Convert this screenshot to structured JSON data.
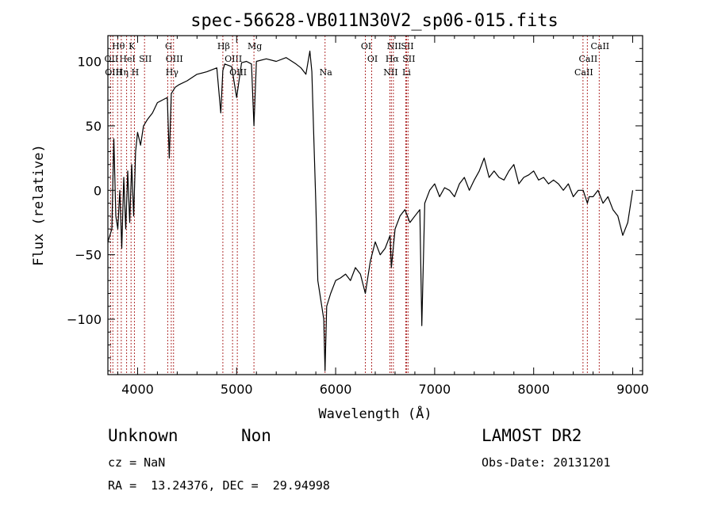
{
  "chart_data": {
    "type": "line",
    "title": "spec-56628-VB011N30V2_sp06-015.fits",
    "xlabel": "Wavelength (Å)",
    "ylabel": "Flux (relative)",
    "xlim": [
      3700,
      9100
    ],
    "ylim": [
      -143,
      120
    ],
    "xticks": [
      4000,
      5000,
      6000,
      7000,
      8000,
      9000
    ],
    "yticks": [
      -100,
      -50,
      0,
      50,
      100
    ],
    "grid": false,
    "line_color": "#000000",
    "marker_color": "#b03030",
    "series": [
      {
        "x": [
          3700,
          3740,
          3760,
          3780,
          3800,
          3820,
          3840,
          3860,
          3880,
          3900,
          3920,
          3940,
          3960,
          3980,
          4000,
          4030,
          4060,
          4100,
          4150,
          4200,
          4250,
          4300,
          4320,
          4340,
          4380,
          4420,
          4500,
          4600,
          4700,
          4800,
          4840,
          4861,
          4880,
          4950,
          5000,
          5050,
          5100,
          5150,
          5175,
          5200,
          5300,
          5400,
          5500,
          5600,
          5650,
          5700,
          5740,
          5760,
          5780,
          5800,
          5820,
          5840,
          5860,
          5880,
          5893,
          5910,
          5950,
          6000,
          6050,
          6100,
          6150,
          6200,
          6250,
          6300,
          6350,
          6400,
          6450,
          6500,
          6550,
          6563,
          6600,
          6650,
          6700,
          6750,
          6800,
          6850,
          6870,
          6900,
          6950,
          7000,
          7050,
          7100,
          7150,
          7200,
          7250,
          7300,
          7350,
          7400,
          7450,
          7500,
          7550,
          7600,
          7650,
          7700,
          7750,
          7800,
          7850,
          7900,
          7950,
          8000,
          8050,
          8100,
          8150,
          8200,
          8250,
          8300,
          8350,
          8400,
          8450,
          8500,
          8542,
          8560,
          8600,
          8650,
          8700,
          8750,
          8800,
          8850,
          8900,
          8950,
          9000
        ],
        "y": [
          -40,
          -30,
          40,
          -20,
          -30,
          0,
          -45,
          10,
          -30,
          15,
          -25,
          20,
          -20,
          30,
          45,
          35,
          50,
          55,
          60,
          68,
          70,
          72,
          25,
          75,
          80,
          82,
          85,
          90,
          92,
          95,
          60,
          93,
          98,
          96,
          72,
          99,
          100,
          98,
          50,
          100,
          102,
          100,
          103,
          98,
          95,
          90,
          108,
          92,
          40,
          -10,
          -70,
          -80,
          -90,
          -100,
          -140,
          -90,
          -80,
          -70,
          -68,
          -65,
          -70,
          -60,
          -65,
          -80,
          -55,
          -40,
          -50,
          -45,
          -35,
          -60,
          -30,
          -20,
          -15,
          -25,
          -20,
          -15,
          -105,
          -10,
          0,
          5,
          -5,
          2,
          0,
          -5,
          5,
          10,
          0,
          8,
          15,
          25,
          10,
          15,
          10,
          8,
          15,
          20,
          5,
          10,
          12,
          15,
          8,
          10,
          5,
          8,
          5,
          0,
          5,
          -5,
          0,
          0,
          -10,
          -5,
          -5,
          0,
          -10,
          -5,
          -15,
          -20,
          -35,
          -25,
          0
        ]
      }
    ],
    "spectral_lines": [
      {
        "label": "Hθ",
        "wavelength": 3798,
        "row": 0
      },
      {
        "label": "K",
        "wavelength": 3934,
        "row": 0
      },
      {
        "label": "G",
        "wavelength": 4304,
        "row": 0
      },
      {
        "label": "Hβ",
        "wavelength": 4861,
        "row": 0
      },
      {
        "label": "Mg",
        "wavelength": 5175,
        "row": 0
      },
      {
        "label": "OI",
        "wavelength": 6300,
        "row": 0
      },
      {
        "label": "NII",
        "wavelength": 6583,
        "row": 0
      },
      {
        "label": "SII",
        "wavelength": 6716,
        "row": 0
      },
      {
        "label": "CaII",
        "wavelength": 8662,
        "row": 0
      },
      {
        "label": "OII",
        "wavelength": 3727,
        "row": 1
      },
      {
        "label": "HeI",
        "wavelength": 3889,
        "row": 1
      },
      {
        "label": "SII",
        "wavelength": 4070,
        "row": 1
      },
      {
        "label": "OIII",
        "wavelength": 4363,
        "row": 1
      },
      {
        "label": "OIII",
        "wavelength": 4959,
        "row": 1
      },
      {
        "label": "OI",
        "wavelength": 6364,
        "row": 1
      },
      {
        "label": "Hα",
        "wavelength": 6563,
        "row": 1
      },
      {
        "label": "SII",
        "wavelength": 6731,
        "row": 1
      },
      {
        "label": "CaII",
        "wavelength": 8542,
        "row": 1
      },
      {
        "label": "OIII",
        "wavelength": 3750,
        "row": 2
      },
      {
        "label": "Hη",
        "wavelength": 3835,
        "row": 2
      },
      {
        "label": "H",
        "wavelength": 3968,
        "row": 2
      },
      {
        "label": "Hγ",
        "wavelength": 4340,
        "row": 2
      },
      {
        "label": "OIII",
        "wavelength": 5007,
        "row": 2
      },
      {
        "label": "Na",
        "wavelength": 5893,
        "row": 2
      },
      {
        "label": "NII",
        "wavelength": 6548,
        "row": 2
      },
      {
        "label": "Li",
        "wavelength": 6708,
        "row": 2
      },
      {
        "label": "CaII",
        "wavelength": 8498,
        "row": 2
      }
    ]
  },
  "info": {
    "classification": "Unknown",
    "subclass": "Non",
    "survey": "LAMOST DR2",
    "cz": "cz = NaN",
    "obs_date": "Obs-Date: 20131201",
    "coords": "RA =  13.24376, DEC =  29.94998"
  }
}
